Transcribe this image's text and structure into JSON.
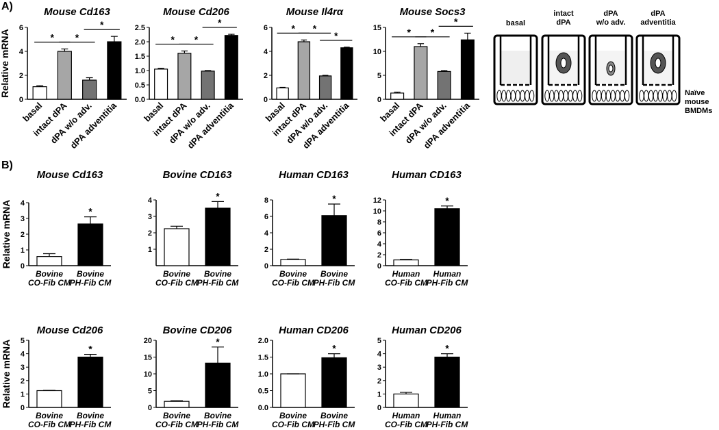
{
  "figure": {
    "panel_labels": [
      "A)",
      "B)"
    ],
    "diagram": {
      "labels": [
        "basal",
        "intact\ndPA",
        "dPA\nw/o adv.",
        "dPA\nadventitia"
      ],
      "cell_label": "Naïve\nmouse\nBMDMs"
    }
  },
  "chart_data": [
    {
      "type": "bar",
      "title": "Mouse Cd163",
      "ylabel": "Relative mRNA",
      "categories": [
        "basal",
        "intact dPA",
        "dPA w/o adv.",
        "dPA adventitia"
      ],
      "values": [
        1.05,
        4.0,
        1.6,
        4.8
      ],
      "errors": [
        0.08,
        0.2,
        0.2,
        0.45
      ],
      "colors": [
        "#ffffff",
        "#a6a6a6",
        "#737373",
        "#000000"
      ],
      "ylim": [
        0,
        6
      ],
      "yticks": [
        0,
        2,
        4,
        6
      ],
      "significance_labels": [
        "*",
        "*",
        "*"
      ]
    },
    {
      "type": "bar",
      "title": "Mouse Cd206",
      "categories": [
        "basal",
        "intact dPA",
        "dPA w/o adv.",
        "dPA adventitia"
      ],
      "values": [
        1.05,
        1.6,
        0.98,
        2.22
      ],
      "errors": [
        0.03,
        0.08,
        0.02,
        0.04
      ],
      "colors": [
        "#ffffff",
        "#a6a6a6",
        "#737373",
        "#000000"
      ],
      "ylim": [
        0,
        2.5
      ],
      "yticks": [
        {
          "value": 0,
          "label": "0.0"
        },
        0.5,
        {
          "value": 1,
          "label": "1.0"
        },
        1.5,
        {
          "value": 2,
          "label": "2.0"
        },
        2.5
      ],
      "significance_labels": [
        "*",
        "*",
        "*"
      ]
    },
    {
      "type": "bar",
      "title": "Mouse Il4rα",
      "categories": [
        "basal",
        "intact dPA",
        "dPA w/o adv.",
        "dPA adventitia"
      ],
      "values": [
        0.95,
        4.8,
        1.95,
        4.3
      ],
      "errors": [
        0.05,
        0.15,
        0.05,
        0.05
      ],
      "colors": [
        "#ffffff",
        "#a6a6a6",
        "#737373",
        "#000000"
      ],
      "ylim": [
        0,
        6
      ],
      "yticks": [
        0,
        2,
        4,
        6
      ],
      "significance_labels": [
        "*",
        "*",
        "*"
      ]
    },
    {
      "type": "bar",
      "title": "Mouse Socs3",
      "categories": [
        "basal",
        "intact dPA",
        "dPA w/o adv.",
        "dPA adventitia"
      ],
      "values": [
        1.3,
        11,
        5.8,
        12.4
      ],
      "errors": [
        0.2,
        0.6,
        0.2,
        1.4
      ],
      "colors": [
        "#ffffff",
        "#a6a6a6",
        "#737373",
        "#000000"
      ],
      "ylim": [
        0,
        15
      ],
      "yticks": [
        0,
        5,
        10,
        15
      ],
      "significance_labels": [
        "*",
        "*",
        "*"
      ]
    },
    {
      "type": "bar",
      "title": "Mouse Cd163",
      "ylabel": "Relative mRNA",
      "categories": [
        "Bovine\nCO-Fib CM",
        "Bovine\nPH-Fib CM"
      ],
      "values": [
        0.58,
        2.65
      ],
      "errors": [
        0.18,
        0.45
      ],
      "colors": [
        "#ffffff",
        "#000000"
      ],
      "ylim": [
        0,
        4
      ],
      "yticks": [
        0,
        1,
        2,
        3,
        4
      ],
      "significance_labels": [
        "*"
      ]
    },
    {
      "type": "bar",
      "title": "Bovine CD163",
      "categories": [
        "Bovine\nCO-Fib CM",
        "Bovine\nPH-Fib CM"
      ],
      "values": [
        2.25,
        3.5
      ],
      "errors": [
        0.15,
        0.4
      ],
      "colors": [
        "#ffffff",
        "#000000"
      ],
      "ylim": [
        0,
        4
      ],
      "yticks": [
        1,
        2,
        3,
        4
      ],
      "significance_labels": [
        "*"
      ]
    },
    {
      "type": "bar",
      "title": "Human CD163",
      "categories": [
        "Bovine\nCO-Fib CM",
        "Bovine\nPH-Fib CM"
      ],
      "values": [
        0.75,
        6.1
      ],
      "errors": [
        0.05,
        1.4
      ],
      "colors": [
        "#ffffff",
        "#000000"
      ],
      "ylim": [
        0,
        8
      ],
      "yticks": [
        0,
        2,
        4,
        6,
        8
      ],
      "significance_labels": [
        "*"
      ]
    },
    {
      "type": "bar",
      "title": "Human CD163",
      "categories": [
        "Human\nCO-Fib CM",
        "Human\nPH-Fib CM"
      ],
      "values": [
        1.05,
        10.4
      ],
      "errors": [
        0.1,
        0.5
      ],
      "colors": [
        "#ffffff",
        "#000000"
      ],
      "ylim": [
        0,
        12
      ],
      "yticks": [
        0,
        2,
        4,
        6,
        8,
        10,
        12
      ],
      "significance_labels": [
        "*"
      ]
    },
    {
      "type": "bar",
      "title": "Mouse Cd206",
      "ylabel": "Relative mRNA",
      "categories": [
        "Bovine\nCO-Fib CM",
        "Bovine\nPH-Fib CM"
      ],
      "values": [
        1.25,
        3.75
      ],
      "errors": [
        0.02,
        0.2
      ],
      "colors": [
        "#ffffff",
        "#000000"
      ],
      "ylim": [
        0,
        5
      ],
      "yticks": [
        0,
        1,
        2,
        3,
        4,
        5
      ],
      "significance_labels": [
        "*"
      ]
    },
    {
      "type": "bar",
      "title": "Bovine CD206",
      "categories": [
        "Bovine\nCO-Fib CM",
        "Bovine\nPH-Fib CM"
      ],
      "values": [
        1.8,
        13.2
      ],
      "errors": [
        0.2,
        4.8
      ],
      "colors": [
        "#ffffff",
        "#000000"
      ],
      "ylim": [
        0,
        20
      ],
      "yticks": [
        0,
        5,
        10,
        15,
        20
      ],
      "significance_labels": [
        "*"
      ]
    },
    {
      "type": "bar",
      "title": "Human CD206",
      "categories": [
        "Bovine\nCO-Fib CM",
        "Bovine\nPH-Fib CM"
      ],
      "values": [
        1.0,
        1.48
      ],
      "errors": [
        0,
        0.12
      ],
      "colors": [
        "#ffffff",
        "#000000"
      ],
      "ylim": [
        0,
        2
      ],
      "yticks": [
        {
          "value": 0,
          "label": "0.0"
        },
        0.5,
        {
          "value": 1,
          "label": "1.0"
        },
        1.5,
        {
          "value": 2,
          "label": "2.0"
        }
      ],
      "significance_labels": [
        "*"
      ]
    },
    {
      "type": "bar",
      "title": "Human CD206",
      "categories": [
        "Human\nCO-Fib CM",
        "Human\nPH-Fib CM"
      ],
      "values": [
        1.0,
        3.75
      ],
      "errors": [
        0.12,
        0.25
      ],
      "colors": [
        "#ffffff",
        "#000000"
      ],
      "ylim": [
        0,
        5
      ],
      "yticks": [
        0,
        1,
        2,
        3,
        4,
        5
      ],
      "significance_labels": [
        "*"
      ]
    }
  ]
}
